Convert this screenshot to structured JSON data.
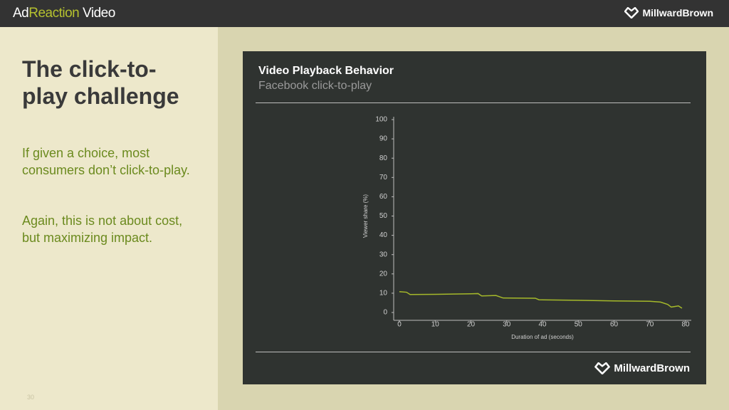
{
  "header": {
    "brand": [
      "Ad",
      "Reaction",
      " Video"
    ],
    "logo": "MillwardBrown"
  },
  "slide": {
    "title": "The click-to-play challenge",
    "paragraphs": [
      "If given a choice, most consumers don’t click-to-play.",
      "Again, this is not about cost, but maximizing impact."
    ],
    "page_number": "30"
  },
  "chart_data": {
    "type": "line",
    "title": "Video Playback Behavior",
    "subtitle": "Facebook click-to-play",
    "x_label": "Duration of ad (seconds)",
    "y_label": "Viewer share (%)",
    "logo": "MillwardBrown",
    "x": [
      0,
      2,
      3,
      10,
      20,
      22,
      23,
      27,
      29,
      38,
      39,
      50,
      60,
      70,
      73,
      75,
      76,
      78,
      79
    ],
    "series": [
      {
        "name": "Facebook click-to-play",
        "color": "#a5b92a",
        "values": [
          10.8,
          10.5,
          9.3,
          9.4,
          9.7,
          9.8,
          8.6,
          8.8,
          7.5,
          7.4,
          6.6,
          6.3,
          6.0,
          5.8,
          5.4,
          4.2,
          2.8,
          3.4,
          2.2
        ]
      }
    ],
    "xlim": [
      0,
      80
    ],
    "xticks": [
      0,
      10,
      20,
      30,
      40,
      50,
      60,
      70,
      80
    ],
    "ylim": [
      0,
      100
    ],
    "yticks": [
      0,
      10,
      20,
      30,
      40,
      50,
      60,
      70,
      80,
      90,
      100
    ],
    "grid": false
  }
}
